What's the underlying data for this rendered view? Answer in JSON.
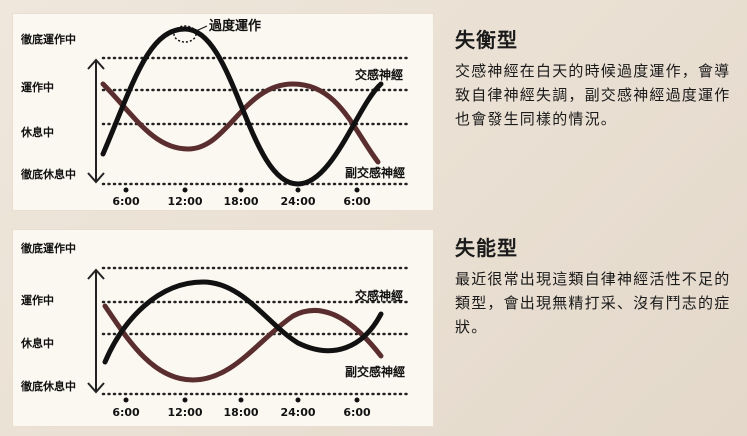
{
  "levels": [
    "徹底運作中",
    "運作中",
    "休息中",
    "徹底休息中"
  ],
  "times": [
    "6:00",
    "12:00",
    "18:00",
    "24:00",
    "6:00"
  ],
  "panels": [
    {
      "sympathetic_label": "交感神經",
      "parasympathetic_label": "副交感神經",
      "callout": "過度運作"
    },
    {
      "sympathetic_label": "交感神經",
      "parasympathetic_label": "副交感神經"
    }
  ],
  "descriptions": [
    {
      "title": "失衡型",
      "body": "交感神經在白天的時候過度運作，會導致自律神經失調，副交感神經過度運作也會發生同樣的情況。"
    },
    {
      "title": "失能型",
      "body": "最近很常出現這類自律神經活性不足的類型，會出現無精打采、沒有鬥志的症狀。"
    }
  ],
  "colors": {
    "sympathetic": "#111111",
    "parasympathetic": "#5a2e2e",
    "panel_bg": "#fbf8f1"
  }
}
